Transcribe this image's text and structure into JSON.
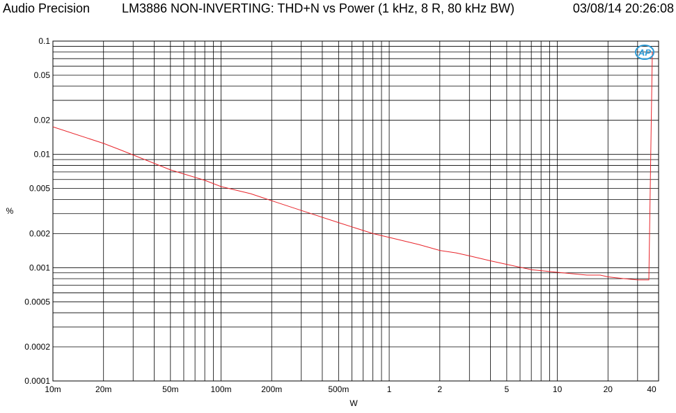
{
  "header": {
    "brand": "Audio Precision",
    "title": "LM3886 NON-INVERTING: THD+N vs Power (1 kHz, 8 R, 80 kHz BW)",
    "datetime": "03/08/14 20:26:08"
  },
  "logo_text": "AP",
  "chart_data": {
    "type": "line",
    "title": "LM3886 NON-INVERTING: THD+N vs Power (1 kHz, 8 R, 80 kHz BW)",
    "xlabel": "W",
    "ylabel": "%",
    "xscale": "log",
    "yscale": "log",
    "xlim": [
      0.01,
      40
    ],
    "ylim": [
      0.0001,
      0.1
    ],
    "grid": true,
    "legend": "none",
    "x_ticks": [
      {
        "value": 0.01,
        "label": "10m"
      },
      {
        "value": 0.02,
        "label": "20m"
      },
      {
        "value": 0.05,
        "label": "50m"
      },
      {
        "value": 0.1,
        "label": "100m"
      },
      {
        "value": 0.2,
        "label": "200m"
      },
      {
        "value": 0.5,
        "label": "500m"
      },
      {
        "value": 1,
        "label": "1"
      },
      {
        "value": 2,
        "label": "2"
      },
      {
        "value": 5,
        "label": "5"
      },
      {
        "value": 10,
        "label": "10"
      },
      {
        "value": 20,
        "label": "20"
      },
      {
        "value": 40,
        "label": "40"
      }
    ],
    "y_ticks": [
      {
        "value": 0.1,
        "label": "0.1"
      },
      {
        "value": 0.05,
        "label": "0.05"
      },
      {
        "value": 0.02,
        "label": "0.02"
      },
      {
        "value": 0.01,
        "label": "0.01"
      },
      {
        "value": 0.005,
        "label": "0.005"
      },
      {
        "value": 0.002,
        "label": "0.002"
      },
      {
        "value": 0.001,
        "label": "0.001"
      },
      {
        "value": 0.0005,
        "label": "0.0005"
      },
      {
        "value": 0.0002,
        "label": "0.0002"
      },
      {
        "value": 0.0001,
        "label": "0.0001"
      }
    ],
    "series": [
      {
        "color": "#e8252b",
        "x": [
          0.01,
          0.02,
          0.025,
          0.05,
          0.08,
          0.1,
          0.15,
          0.2,
          0.3,
          0.5,
          0.8,
          1,
          1.5,
          2,
          2.5,
          3,
          4,
          5,
          7,
          10,
          15,
          18,
          20,
          25,
          30,
          35,
          40
        ],
        "y": [
          0.0175,
          0.0125,
          0.011,
          0.0073,
          0.0059,
          0.0052,
          0.0045,
          0.0039,
          0.0032,
          0.0025,
          0.002,
          0.00185,
          0.0016,
          0.00142,
          0.00135,
          0.00127,
          0.00115,
          0.00107,
          0.00096,
          0.00091,
          0.00086,
          0.00086,
          0.00083,
          0.0008,
          0.00078,
          0.00078,
          0.08
        ]
      }
    ]
  }
}
